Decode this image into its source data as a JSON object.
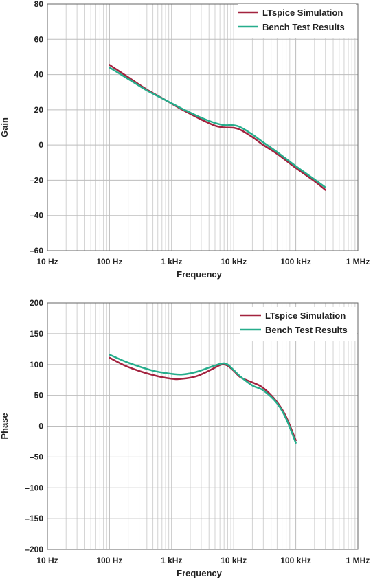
{
  "chart_data": [
    {
      "type": "line",
      "xlabel": "Frequency",
      "ylabel": "Gain",
      "xscale": "log",
      "xlim": [
        10,
        1000000
      ],
      "ylim": [
        -60,
        80
      ],
      "grid": true,
      "legend_position": "top-right",
      "x_ticks": [
        {
          "value": 10,
          "label": "10 Hz"
        },
        {
          "value": 100,
          "label": "100 Hz"
        },
        {
          "value": 1000,
          "label": "1 kHz"
        },
        {
          "value": 10000,
          "label": "10 kHz"
        },
        {
          "value": 100000,
          "label": "100 kHz"
        },
        {
          "value": 1000000,
          "label": "1 MHz"
        }
      ],
      "y_ticks": [
        {
          "value": 80,
          "label": "80"
        },
        {
          "value": 60,
          "label": "60"
        },
        {
          "value": 40,
          "label": "40"
        },
        {
          "value": 20,
          "label": "20"
        },
        {
          "value": 0,
          "label": "0"
        },
        {
          "value": -20,
          "label": "–20"
        },
        {
          "value": -40,
          "label": "–40"
        },
        {
          "value": -60,
          "label": "–60"
        }
      ],
      "series": [
        {
          "name": "LTspice Simulation",
          "color": "#a3233f",
          "points": [
            [
              100,
              45.5
            ],
            [
              200,
              38.5
            ],
            [
              400,
              31.5
            ],
            [
              800,
              25.5
            ],
            [
              1500,
              20
            ],
            [
              3000,
              14.5
            ],
            [
              5000,
              11
            ],
            [
              7000,
              10
            ],
            [
              10000,
              9.8
            ],
            [
              13000,
              8.5
            ],
            [
              20000,
              4.5
            ],
            [
              30000,
              0
            ],
            [
              50000,
              -5
            ],
            [
              100000,
              -13
            ],
            [
              200000,
              -20.5
            ],
            [
              300000,
              -25.5
            ]
          ]
        },
        {
          "name": "Bench Test Results",
          "color": "#26ad8c",
          "points": [
            [
              100,
              44
            ],
            [
              200,
              37.5
            ],
            [
              400,
              31
            ],
            [
              800,
              25.5
            ],
            [
              1500,
              20.5
            ],
            [
              3000,
              15.5
            ],
            [
              5000,
              12.5
            ],
            [
              7000,
              11.3
            ],
            [
              10000,
              11.2
            ],
            [
              13000,
              10
            ],
            [
              20000,
              6
            ],
            [
              30000,
              1.5
            ],
            [
              50000,
              -4
            ],
            [
              100000,
              -12
            ],
            [
              200000,
              -19.5
            ],
            [
              300000,
              -24
            ]
          ]
        }
      ]
    },
    {
      "type": "line",
      "xlabel": "Frequency",
      "ylabel": "Phase",
      "xscale": "log",
      "xlim": [
        10,
        1000000
      ],
      "ylim": [
        -200,
        200
      ],
      "grid": true,
      "legend_position": "top-right",
      "x_ticks": [
        {
          "value": 10,
          "label": "10 Hz"
        },
        {
          "value": 100,
          "label": "100 Hz"
        },
        {
          "value": 1000,
          "label": "1 kHz"
        },
        {
          "value": 10000,
          "label": "10 kHz"
        },
        {
          "value": 100000,
          "label": "100 kHz"
        },
        {
          "value": 1000000,
          "label": "1 MHz"
        }
      ],
      "y_ticks": [
        {
          "value": 200,
          "label": "200"
        },
        {
          "value": 150,
          "label": "150"
        },
        {
          "value": 100,
          "label": "100"
        },
        {
          "value": 50,
          "label": "50"
        },
        {
          "value": 0,
          "label": "0"
        },
        {
          "value": -50,
          "label": "–50"
        },
        {
          "value": -100,
          "label": "–100"
        },
        {
          "value": -150,
          "label": "–150"
        },
        {
          "value": -200,
          "label": "–200"
        }
      ],
      "series": [
        {
          "name": "LTspice Simulation",
          "color": "#a3233f",
          "points": [
            [
              100,
              111
            ],
            [
              200,
              96
            ],
            [
              500,
              83
            ],
            [
              1000,
              77
            ],
            [
              1500,
              77
            ],
            [
              2500,
              81
            ],
            [
              4000,
              90
            ],
            [
              6000,
              99
            ],
            [
              7000,
              100
            ],
            [
              8000,
              98
            ],
            [
              10000,
              90
            ],
            [
              13000,
              79
            ],
            [
              20000,
              71
            ],
            [
              30000,
              62
            ],
            [
              50000,
              39
            ],
            [
              70000,
              15
            ],
            [
              100000,
              -23
            ]
          ]
        },
        {
          "name": "Bench Test Results",
          "color": "#26ad8c",
          "points": [
            [
              100,
              116
            ],
            [
              200,
              103
            ],
            [
              500,
              90
            ],
            [
              1000,
              85
            ],
            [
              1500,
              84
            ],
            [
              2500,
              88
            ],
            [
              4000,
              95
            ],
            [
              6000,
              101
            ],
            [
              7000,
              102
            ],
            [
              8000,
              100
            ],
            [
              10000,
              91
            ],
            [
              13000,
              80
            ],
            [
              20000,
              66
            ],
            [
              30000,
              58
            ],
            [
              50000,
              37
            ],
            [
              70000,
              12
            ],
            [
              100000,
              -27
            ]
          ]
        }
      ]
    }
  ]
}
